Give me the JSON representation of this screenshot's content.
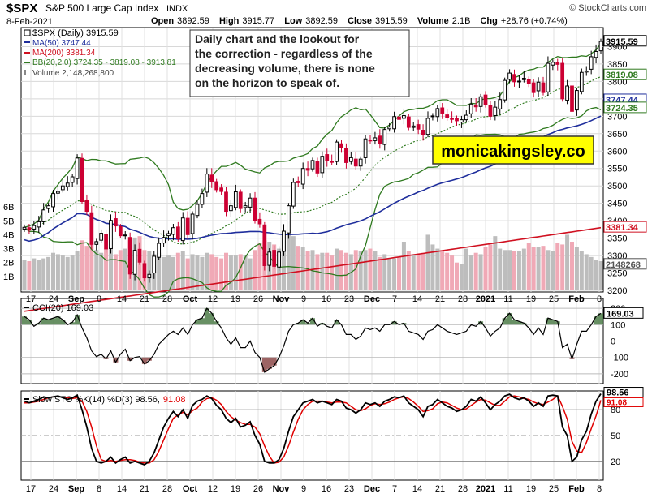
{
  "header": {
    "symbol": "$SPX",
    "name": "S&P 500 Large Cap Index",
    "exchange": "INDX",
    "watermark": "© StockCharts.com",
    "date": "8-Feb-2021",
    "open_label": "Open",
    "open": "3892.59",
    "high_label": "High",
    "high": "3915.77",
    "low_label": "Low",
    "low": "3892.59",
    "close_label": "Close",
    "close": "3915.59",
    "volume_label": "Volume",
    "volume": "2.1B",
    "chg_label": "Chg",
    "chg": "+28.76 (+0.74%)"
  },
  "colors": {
    "up": "#000000",
    "down": "#cc0033",
    "ma50": "#1f2e9c",
    "ma200": "#d01020",
    "bb": "#2f7a1f",
    "bbmid": "#2f7a1f",
    "volume_up": "#bdbdbd",
    "volume_down": "#f0a9b6",
    "cci_fill": "#4e7d4a",
    "cci_neg_fill": "#8c4a4a",
    "sto_k": "#000000",
    "sto_d": "#e00000",
    "badge_close": "#000000",
    "badge_ma50": "#1f2e9c",
    "badge_ma200": "#d01020",
    "badge_bb": "#2f7a1f",
    "vol_badge": "#555555"
  },
  "chart_data": [
    {
      "type": "candlestick",
      "title": "$SPX (Daily) 3915.59",
      "legend": [
        {
          "label": "$SPX (Daily) 3915.59",
          "color": "#000000"
        },
        {
          "label": "MA(50) 3747.44",
          "color": "#1f2e9c"
        },
        {
          "label": "MA(200) 3381.34",
          "color": "#d01020"
        },
        {
          "label": "BB(20,2.0) 3724.35 - 3819.08 - 3913.81",
          "color": "#2f7a1f"
        },
        {
          "label": "Volume 2,148,268,800",
          "color": "#555555"
        }
      ],
      "annotation": "Daily chart and the lookout for the correction - regardless of the decreasing volume, there is none on the horizon to speak of.",
      "brand": "monicakingsley.co",
      "ylim": [
        3200,
        3950
      ],
      "y_ticks": [
        3200,
        3250,
        3300,
        3350,
        3400,
        3450,
        3500,
        3550,
        3600,
        3650,
        3700,
        3750,
        3800,
        3850,
        3900
      ],
      "y_badges": [
        {
          "label": "3915.59",
          "value": 3915.59,
          "color": "#000000"
        },
        {
          "label": "3819.08",
          "value": 3819.08,
          "color": "#2f7a1f"
        },
        {
          "label": "3747.44",
          "value": 3747.44,
          "color": "#1f2e9c"
        },
        {
          "label": "3724.35",
          "value": 3724.35,
          "color": "#2f7a1f"
        },
        {
          "label": "3381.34",
          "value": 3381.34,
          "color": "#d01020"
        },
        {
          "label": "2148268",
          "value": 3275,
          "color": "#555555"
        }
      ],
      "volume_ticks": [
        "6B",
        "5B",
        "4B",
        "3B",
        "2B",
        "1B"
      ],
      "x_ticks": [
        "17",
        "24",
        "Sep",
        "8",
        "14",
        "21",
        "28",
        "Oct",
        "12",
        "19",
        "26",
        "Nov",
        "9",
        "16",
        "23",
        "Dec",
        "7",
        "14",
        "21",
        "28",
        "2021",
        "11",
        "19",
        "25",
        "Feb",
        "8"
      ],
      "closes": [
        3381,
        3373,
        3386,
        3397,
        3431,
        3443,
        3478,
        3484,
        3500,
        3508,
        3526,
        3580,
        3455,
        3427,
        3332,
        3340,
        3364,
        3319,
        3401,
        3385,
        3357,
        3357,
        3247,
        3315,
        3281,
        3236,
        3246,
        3298,
        3335,
        3352,
        3363,
        3380,
        3348,
        3408,
        3360,
        3419,
        3447,
        3478,
        3534,
        3511,
        3489,
        3484,
        3427,
        3443,
        3483,
        3435,
        3443,
        3465,
        3400,
        3391,
        3271,
        3310,
        3269,
        3310,
        3370,
        3443,
        3510,
        3509,
        3550,
        3545,
        3573,
        3537,
        3585,
        3572,
        3568,
        3626,
        3609,
        3567,
        3581,
        3557,
        3577,
        3635,
        3629,
        3638,
        3621,
        3662,
        3669,
        3699,
        3691,
        3702,
        3668,
        3672,
        3663,
        3647,
        3694,
        3701,
        3722,
        3709,
        3695,
        3691,
        3687,
        3690,
        3703,
        3735,
        3727,
        3756,
        3733,
        3700,
        3726,
        3748,
        3803,
        3824,
        3799,
        3801,
        3809,
        3795,
        3768,
        3798,
        3768,
        3852,
        3855,
        3849,
        3750,
        3787,
        3714,
        3774,
        3826,
        3830,
        3871,
        3886,
        3915
      ],
      "volume": [
        2.2,
        2.1,
        2.3,
        2.2,
        2.3,
        2.4,
        2.7,
        2.6,
        2.5,
        2.4,
        2.5,
        2.8,
        3.6,
        3.2,
        3.4,
        2.9,
        2.7,
        3.0,
        3.1,
        2.6,
        2.9,
        3.0,
        3.6,
        3.8,
        3.9,
        2.9,
        2.8,
        2.6,
        2.7,
        2.4,
        2.5,
        2.4,
        2.7,
        2.8,
        2.3,
        2.6,
        2.5,
        2.4,
        2.7,
        2.6,
        2.4,
        2.3,
        2.7,
        2.5,
        2.5,
        2.6,
        2.5,
        2.3,
        2.9,
        3.4,
        3.6,
        3.5,
        3.3,
        3.0,
        3.6,
        4.4,
        3.9,
        3.2,
        3.1,
        2.8,
        2.9,
        2.6,
        2.7,
        2.7,
        2.5,
        3.0,
        2.9,
        2.7,
        2.6,
        2.9,
        2.8,
        2.9,
        3.0,
        2.8,
        2.4,
        2.6,
        2.3,
        2.3,
        2.4,
        3.5,
        2.8,
        2.6,
        2.6,
        2.7,
        4.0,
        3.3,
        3.0,
        2.8,
        2.7,
        2.5,
        2.0,
        1.9,
        3.0,
        2.5,
        2.7,
        2.6,
        3.1,
        3.3,
        3.9,
        3.0,
        2.9,
        2.9,
        2.8,
        2.8,
        3.0,
        3.4,
        3.1,
        3.1,
        3.2,
        2.9,
        2.8,
        3.4,
        3.3,
        4.0,
        3.5,
        3.1,
        2.8,
        2.6,
        2.4,
        2.2,
        2.1
      ]
    },
    {
      "type": "line",
      "title": "CCI(20) 169.03",
      "ylim": [
        -250,
        250
      ],
      "y_ticks": [
        -200,
        -100,
        0,
        100,
        200
      ],
      "badge": "169.03",
      "values": [
        150,
        130,
        90,
        110,
        140,
        130,
        140,
        150,
        130,
        100,
        115,
        160,
        80,
        20,
        -60,
        -95,
        -80,
        -110,
        -60,
        -130,
        -80,
        -50,
        -120,
        -100,
        -95,
        -140,
        -120,
        -80,
        -20,
        10,
        40,
        60,
        40,
        80,
        40,
        100,
        130,
        140,
        200,
        170,
        120,
        80,
        20,
        -20,
        20,
        -40,
        -40,
        0,
        -70,
        -100,
        -190,
        -170,
        -150,
        -100,
        -30,
        60,
        100,
        110,
        130,
        110,
        140,
        90,
        110,
        90,
        80,
        130,
        100,
        40,
        40,
        10,
        30,
        80,
        70,
        80,
        60,
        100,
        100,
        120,
        100,
        110,
        60,
        50,
        40,
        10,
        60,
        70,
        100,
        80,
        60,
        50,
        40,
        50,
        60,
        100,
        90,
        120,
        80,
        30,
        60,
        80,
        140,
        170,
        130,
        120,
        110,
        80,
        40,
        80,
        40,
        140,
        130,
        120,
        -40,
        -20,
        -110,
        -20,
        60,
        60,
        100,
        150,
        169
      ]
    },
    {
      "type": "line",
      "title": "Slow STO %K(14) %D(3) 98.56, 91.08",
      "legend_prefix": "Slow STO %K(14) %D(3) 98.56,",
      "legend_d": "91.08",
      "ylim": [
        0,
        100
      ],
      "y_ticks": [
        20,
        50,
        80
      ],
      "badge_k": "98.56",
      "badge_d": "91.08",
      "k": [
        90,
        88,
        90,
        92,
        95,
        94,
        95,
        96,
        94,
        92,
        94,
        97,
        80,
        60,
        35,
        20,
        18,
        20,
        25,
        18,
        22,
        25,
        18,
        20,
        18,
        16,
        20,
        30,
        45,
        60,
        70,
        78,
        72,
        80,
        70,
        85,
        90,
        92,
        96,
        93,
        85,
        80,
        70,
        65,
        70,
        60,
        62,
        66,
        50,
        40,
        20,
        18,
        18,
        22,
        35,
        55,
        72,
        80,
        88,
        90,
        92,
        88,
        90,
        88,
        86,
        92,
        90,
        82,
        80,
        76,
        80,
        88,
        86,
        88,
        84,
        90,
        92,
        95,
        94,
        96,
        88,
        84,
        80,
        72,
        84,
        86,
        92,
        88,
        84,
        82,
        78,
        80,
        84,
        92,
        90,
        95,
        88,
        80,
        86,
        90,
        96,
        98,
        94,
        92,
        94,
        90,
        84,
        88,
        84,
        96,
        97,
        96,
        60,
        50,
        20,
        25,
        45,
        55,
        75,
        90,
        98.56
      ],
      "d": [
        88,
        88,
        89,
        90,
        92,
        94,
        95,
        95,
        95,
        94,
        93,
        94,
        90,
        78,
        60,
        38,
        22,
        20,
        21,
        20,
        21,
        22,
        22,
        21,
        19,
        18,
        18,
        22,
        32,
        45,
        58,
        70,
        74,
        77,
        74,
        79,
        82,
        89,
        93,
        94,
        91,
        86,
        78,
        72,
        68,
        65,
        63,
        63,
        60,
        52,
        38,
        26,
        18,
        19,
        25,
        38,
        54,
        69,
        80,
        86,
        90,
        90,
        90,
        89,
        88,
        89,
        89,
        88,
        84,
        80,
        79,
        81,
        85,
        87,
        86,
        87,
        89,
        92,
        94,
        95,
        93,
        89,
        84,
        78,
        79,
        81,
        87,
        89,
        88,
        85,
        82,
        80,
        81,
        85,
        89,
        92,
        91,
        88,
        85,
        85,
        90,
        95,
        96,
        95,
        93,
        92,
        89,
        87,
        86,
        89,
        92,
        96,
        84,
        69,
        43,
        32,
        30,
        42,
        58,
        73,
        91.08
      ]
    }
  ]
}
